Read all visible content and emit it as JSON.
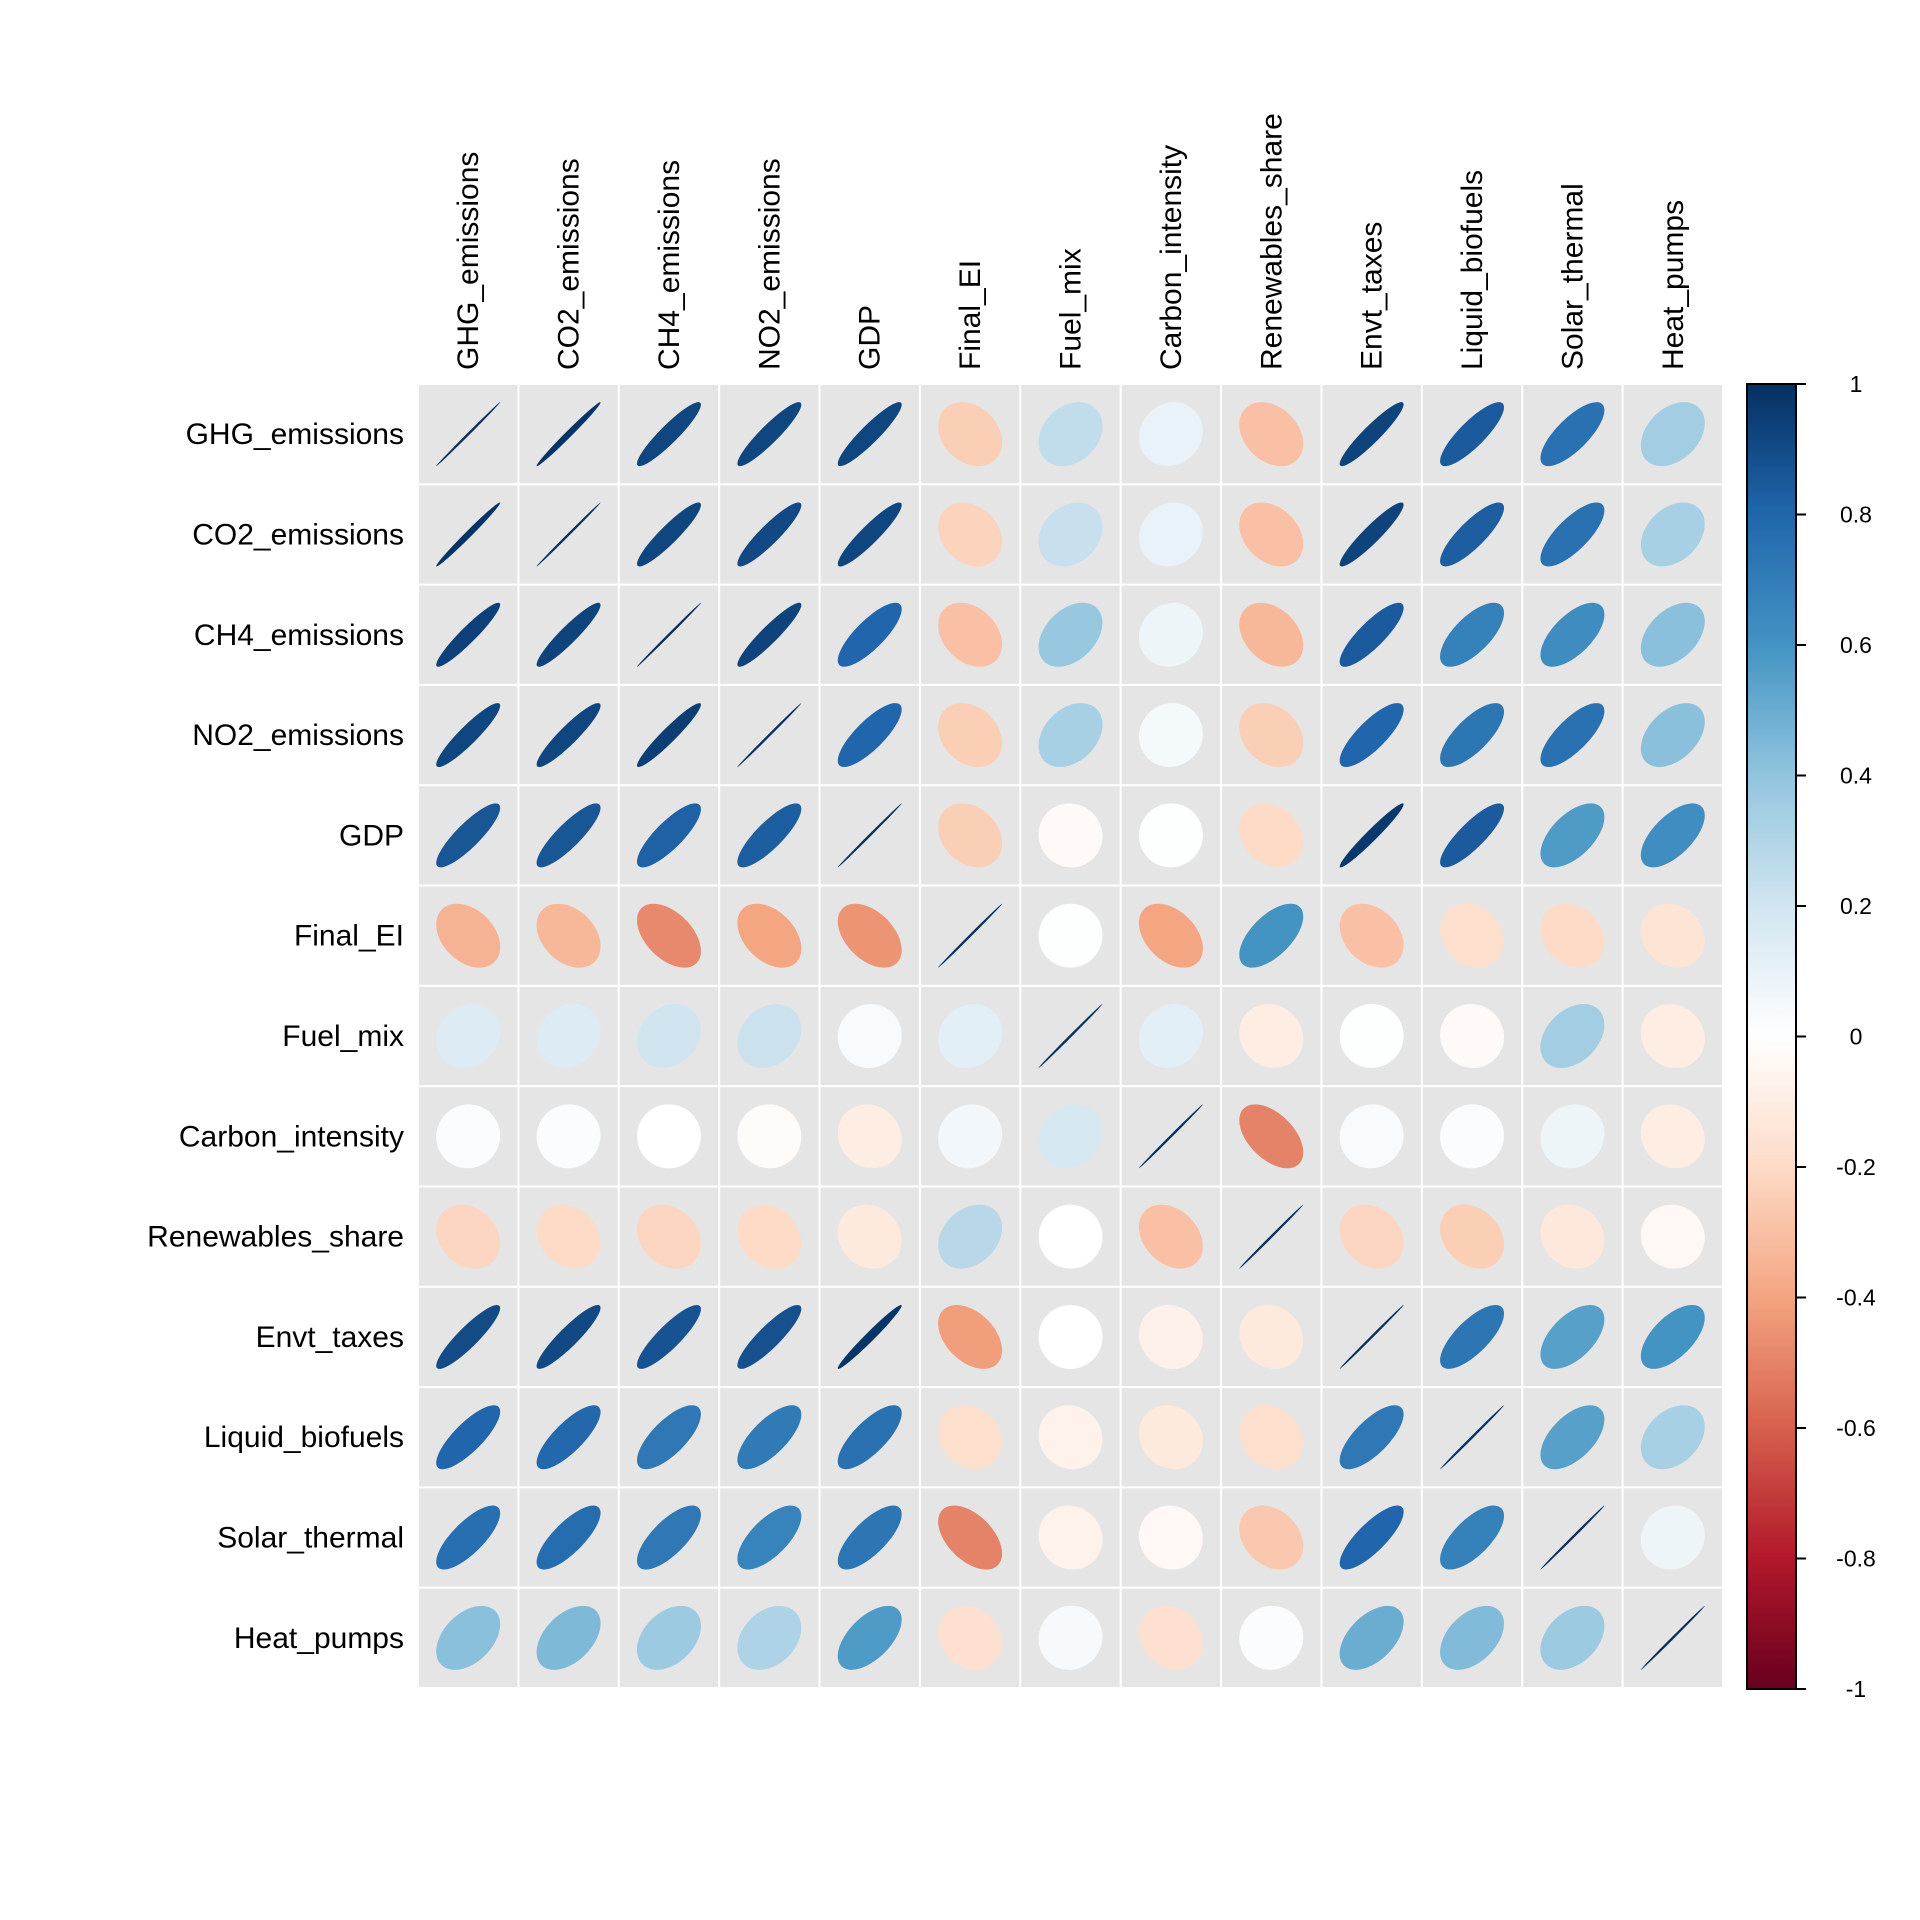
{
  "chart_data": {
    "type": "heatmap",
    "subtype": "correlation-ellipse",
    "title": "",
    "variables": [
      "GHG_emissions",
      "CO2_emissions",
      "CH4_emissions",
      "NO2_emissions",
      "GDP",
      "Final_EI",
      "Fuel_mix",
      "Carbon_intensity",
      "Renewables_share",
      "Envt_taxes",
      "Liquid_biofuels",
      "Solar_thermal",
      "Heat_pumps"
    ],
    "row_labels": [
      "GHG_emissions",
      "CO2_emissions",
      "CH4_emissions",
      "NO2_emissions",
      "GDP",
      "Final_EI",
      "Fuel_mix",
      "Carbon_intensity",
      "Renewables_share",
      "Envt_taxes",
      "Liquid_biofuels",
      "Solar_thermal",
      "Heat_pumps"
    ],
    "col_labels": [
      "GHG_emissions",
      "CO2_emissions",
      "CH4_emissions",
      "NO2_emissions",
      "GDP",
      "Final_EI",
      "Fuel_mix",
      "Carbon_intensity",
      "Renewables_share",
      "Envt_taxes",
      "Liquid_biofuels",
      "Solar_thermal",
      "Heat_pumps"
    ],
    "values": [
      [
        1.0,
        0.99,
        0.92,
        0.92,
        0.92,
        -0.25,
        0.25,
        0.1,
        -0.3,
        0.93,
        0.84,
        0.75,
        0.35
      ],
      [
        0.99,
        1.0,
        0.92,
        0.91,
        0.92,
        -0.23,
        0.23,
        0.1,
        -0.3,
        0.93,
        0.83,
        0.75,
        0.33
      ],
      [
        0.94,
        0.93,
        1.0,
        0.93,
        0.8,
        -0.3,
        0.38,
        0.08,
        -0.33,
        0.84,
        0.68,
        0.63,
        0.42
      ],
      [
        0.92,
        0.92,
        0.95,
        1.0,
        0.8,
        -0.25,
        0.33,
        0.05,
        -0.25,
        0.8,
        0.73,
        0.75,
        0.42
      ],
      [
        0.86,
        0.86,
        0.82,
        0.83,
        1.0,
        -0.25,
        -0.03,
        0.01,
        -0.2,
        0.97,
        0.84,
        0.57,
        0.62
      ],
      [
        -0.35,
        -0.33,
        -0.48,
        -0.4,
        -0.45,
        1.0,
        0.01,
        -0.4,
        0.6,
        -0.3,
        -0.18,
        -0.2,
        -0.15
      ],
      [
        0.15,
        0.15,
        0.2,
        0.22,
        0.03,
        0.12,
        1.0,
        0.12,
        -0.1,
        0.01,
        -0.03,
        0.35,
        -0.1
      ],
      [
        0.02,
        0.02,
        0.0,
        -0.02,
        -0.1,
        0.06,
        0.18,
        1.0,
        -0.5,
        0.03,
        0.02,
        0.08,
        -0.1
      ],
      [
        -0.22,
        -0.2,
        -0.22,
        -0.2,
        -0.12,
        0.28,
        0.0,
        -0.3,
        1.0,
        -0.22,
        -0.25,
        -0.13,
        -0.04
      ],
      [
        0.9,
        0.91,
        0.87,
        0.88,
        0.98,
        -0.42,
        0.0,
        -0.08,
        -0.12,
        1.0,
        0.73,
        0.55,
        0.6
      ],
      [
        0.8,
        0.79,
        0.72,
        0.71,
        0.75,
        -0.18,
        -0.07,
        -0.12,
        -0.18,
        0.72,
        1.0,
        0.55,
        0.33
      ],
      [
        0.76,
        0.77,
        0.72,
        0.67,
        0.73,
        -0.5,
        -0.07,
        -0.04,
        -0.27,
        0.8,
        0.68,
        1.0,
        0.08
      ],
      [
        0.42,
        0.45,
        0.37,
        0.31,
        0.57,
        -0.17,
        0.04,
        -0.17,
        0.02,
        0.5,
        0.44,
        0.37,
        1.0
      ]
    ],
    "color_scale": {
      "range": [
        -1,
        1
      ],
      "ticks": [
        "1",
        "0.8",
        "0.6",
        "0.4",
        "0.2",
        "0",
        "-0.2",
        "-0.4",
        "-0.6",
        "-0.8",
        "-1"
      ],
      "tick_values": [
        1,
        0.8,
        0.6,
        0.4,
        0.2,
        0,
        -0.2,
        -0.4,
        -0.6,
        -0.8,
        -1
      ],
      "palette": [
        "#67001F",
        "#B2182B",
        "#D6604D",
        "#F4A582",
        "#FDDBC7",
        "#FFFFFF",
        "#D1E5F0",
        "#92C5DE",
        "#4393C3",
        "#2166AC",
        "#053061"
      ],
      "position": "right"
    },
    "cell_background": "#E5E5E5",
    "grid": true,
    "legend": "right"
  }
}
